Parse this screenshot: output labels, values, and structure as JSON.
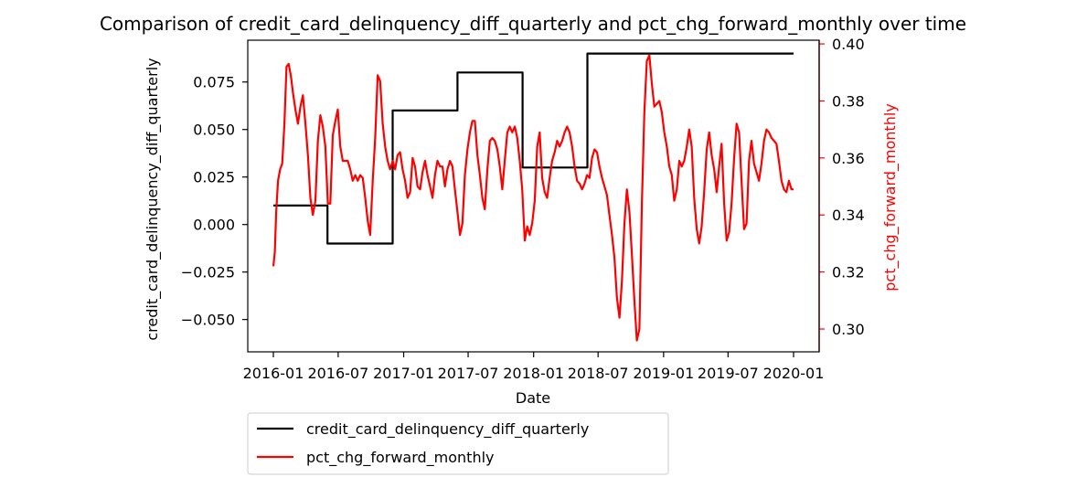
{
  "chart_data": {
    "type": "line",
    "title": "Comparison of credit_card_delinquency_diff_quarterly and pct_chg_forward_monthly over time",
    "xlabel": "Date",
    "ylabel_left": "credit_card_delinquency_diff_quarterly",
    "ylabel_right": "pct_chg_forward_monthly",
    "xlim": [
      "2016-01-01",
      "2020-01-01"
    ],
    "ylim_left": [
      -0.067,
      0.097
    ],
    "ylim_right": [
      0.292,
      0.4013
    ],
    "x_ticks": [
      "2016-01",
      "2016-07",
      "2017-01",
      "2017-07",
      "2018-01",
      "2018-07",
      "2019-01",
      "2019-07",
      "2020-01"
    ],
    "y_ticks_left": [
      "0.075",
      "0.050",
      "0.025",
      "0.000",
      "−0.025",
      "−0.050"
    ],
    "y_ticks_left_values": [
      0.075,
      0.05,
      0.025,
      0.0,
      -0.025,
      -0.05
    ],
    "y_ticks_right": [
      "0.40",
      "0.38",
      "0.36",
      "0.34",
      "0.32",
      "0.30"
    ],
    "y_ticks_right_values": [
      0.4,
      0.38,
      0.36,
      0.34,
      0.32,
      0.3
    ],
    "grid": false,
    "legend_placement": "below-left",
    "colors": {
      "left_series": "#000000",
      "right_series": "#ff0000"
    },
    "series": [
      {
        "name": "credit_card_delinquency_diff_quarterly",
        "axis": "left",
        "step": true,
        "points": [
          [
            "2016-01-01",
            0.01
          ],
          [
            "2016-06-01",
            -0.01
          ],
          [
            "2016-12-01",
            0.06
          ],
          [
            "2017-06-01",
            0.08
          ],
          [
            "2017-06-01",
            0.08
          ],
          [
            "2017-12-01",
            0.03
          ],
          [
            "2017-12-01",
            0.03
          ],
          [
            "2018-06-01",
            0.09
          ],
          [
            "2018-06-01",
            0.09
          ]
        ]
      },
      {
        "name": "pct_chg_forward_monthly",
        "axis": "right",
        "points": [
          [
            "2016-01-01",
            0.322
          ],
          [
            "2016-01-05",
            0.327
          ],
          [
            "2016-01-09",
            0.341
          ],
          [
            "2016-01-14",
            0.352
          ],
          [
            "2016-01-20",
            0.356
          ],
          [
            "2016-01-26",
            0.358
          ],
          [
            "2016-02-01",
            0.372
          ],
          [
            "2016-02-07",
            0.392
          ],
          [
            "2016-02-13",
            0.393
          ],
          [
            "2016-02-19",
            0.389
          ],
          [
            "2016-02-25",
            0.383
          ],
          [
            "2016-03-03",
            0.377
          ],
          [
            "2016-03-10",
            0.372
          ],
          [
            "2016-03-17",
            0.378
          ],
          [
            "2016-03-24",
            0.382
          ],
          [
            "2016-03-31",
            0.372
          ],
          [
            "2016-04-07",
            0.361
          ],
          [
            "2016-04-14",
            0.346
          ],
          [
            "2016-04-21",
            0.34
          ],
          [
            "2016-04-28",
            0.345
          ],
          [
            "2016-05-05",
            0.366
          ],
          [
            "2016-05-12",
            0.375
          ],
          [
            "2016-05-19",
            0.371
          ],
          [
            "2016-05-26",
            0.364
          ],
          [
            "2016-06-02",
            0.344
          ],
          [
            "2016-06-09",
            0.344
          ],
          [
            "2016-06-16",
            0.368
          ],
          [
            "2016-06-23",
            0.373
          ],
          [
            "2016-06-30",
            0.377
          ],
          [
            "2016-07-07",
            0.364
          ],
          [
            "2016-07-14",
            0.359
          ],
          [
            "2016-07-21",
            0.359
          ],
          [
            "2016-07-28",
            0.359
          ],
          [
            "2016-08-04",
            0.356
          ],
          [
            "2016-08-11",
            0.352
          ],
          [
            "2016-08-18",
            0.354
          ],
          [
            "2016-08-25",
            0.352
          ],
          [
            "2016-09-01",
            0.354
          ],
          [
            "2016-09-08",
            0.353
          ],
          [
            "2016-09-15",
            0.346
          ],
          [
            "2016-09-22",
            0.338
          ],
          [
            "2016-09-29",
            0.333
          ],
          [
            "2016-10-06",
            0.352
          ],
          [
            "2016-10-13",
            0.367
          ],
          [
            "2016-10-20",
            0.389
          ],
          [
            "2016-10-27",
            0.387
          ],
          [
            "2016-11-03",
            0.372
          ],
          [
            "2016-11-10",
            0.364
          ],
          [
            "2016-11-17",
            0.359
          ],
          [
            "2016-11-24",
            0.356
          ],
          [
            "2016-12-01",
            0.359
          ],
          [
            "2016-12-08",
            0.356
          ],
          [
            "2016-12-15",
            0.361
          ],
          [
            "2016-12-22",
            0.362
          ],
          [
            "2016-12-29",
            0.356
          ],
          [
            "2017-01-05",
            0.352
          ],
          [
            "2017-01-12",
            0.346
          ],
          [
            "2017-01-19",
            0.348
          ],
          [
            "2017-01-26",
            0.36
          ],
          [
            "2017-02-02",
            0.357
          ],
          [
            "2017-02-09",
            0.35
          ],
          [
            "2017-02-16",
            0.349
          ],
          [
            "2017-02-23",
            0.355
          ],
          [
            "2017-03-02",
            0.359
          ],
          [
            "2017-03-09",
            0.354
          ],
          [
            "2017-03-16",
            0.35
          ],
          [
            "2017-03-23",
            0.346
          ],
          [
            "2017-03-30",
            0.354
          ],
          [
            "2017-04-06",
            0.359
          ],
          [
            "2017-04-13",
            0.357
          ],
          [
            "2017-04-20",
            0.357
          ],
          [
            "2017-04-27",
            0.35
          ],
          [
            "2017-05-04",
            0.356
          ],
          [
            "2017-05-11",
            0.359
          ],
          [
            "2017-05-18",
            0.357
          ],
          [
            "2017-05-25",
            0.349
          ],
          [
            "2017-06-01",
            0.341
          ],
          [
            "2017-06-08",
            0.333
          ],
          [
            "2017-06-15",
            0.337
          ],
          [
            "2017-06-22",
            0.354
          ],
          [
            "2017-06-29",
            0.363
          ],
          [
            "2017-07-06",
            0.369
          ],
          [
            "2017-07-13",
            0.373
          ],
          [
            "2017-07-20",
            0.373
          ],
          [
            "2017-07-27",
            0.361
          ],
          [
            "2017-08-03",
            0.354
          ],
          [
            "2017-08-10",
            0.346
          ],
          [
            "2017-08-17",
            0.342
          ],
          [
            "2017-08-24",
            0.356
          ],
          [
            "2017-08-31",
            0.366
          ],
          [
            "2017-09-07",
            0.367
          ],
          [
            "2017-09-14",
            0.366
          ],
          [
            "2017-09-21",
            0.363
          ],
          [
            "2017-09-28",
            0.357
          ],
          [
            "2017-10-05",
            0.349
          ],
          [
            "2017-10-12",
            0.359
          ],
          [
            "2017-10-19",
            0.369
          ],
          [
            "2017-10-26",
            0.371
          ],
          [
            "2017-11-02",
            0.369
          ],
          [
            "2017-11-09",
            0.371
          ],
          [
            "2017-11-16",
            0.367
          ],
          [
            "2017-11-23",
            0.359
          ],
          [
            "2017-11-30",
            0.349
          ],
          [
            "2017-12-07",
            0.331
          ],
          [
            "2017-12-14",
            0.336
          ],
          [
            "2017-12-21",
            0.333
          ],
          [
            "2017-12-28",
            0.337
          ],
          [
            "2018-01-04",
            0.345
          ],
          [
            "2018-01-11",
            0.364
          ],
          [
            "2018-01-18",
            0.369
          ],
          [
            "2018-01-25",
            0.353
          ],
          [
            "2018-02-01",
            0.348
          ],
          [
            "2018-02-08",
            0.346
          ],
          [
            "2018-02-15",
            0.353
          ],
          [
            "2018-02-22",
            0.359
          ],
          [
            "2018-03-01",
            0.362
          ],
          [
            "2018-03-08",
            0.366
          ],
          [
            "2018-03-15",
            0.364
          ],
          [
            "2018-03-22",
            0.366
          ],
          [
            "2018-03-29",
            0.369
          ],
          [
            "2018-04-05",
            0.371
          ],
          [
            "2018-04-12",
            0.369
          ],
          [
            "2018-04-19",
            0.364
          ],
          [
            "2018-04-26",
            0.357
          ],
          [
            "2018-05-03",
            0.352
          ],
          [
            "2018-05-10",
            0.351
          ],
          [
            "2018-05-17",
            0.349
          ],
          [
            "2018-05-24",
            0.351
          ],
          [
            "2018-05-31",
            0.354
          ],
          [
            "2018-06-07",
            0.353
          ],
          [
            "2018-06-14",
            0.36
          ],
          [
            "2018-06-21",
            0.363
          ],
          [
            "2018-06-28",
            0.362
          ],
          [
            "2018-07-05",
            0.357
          ],
          [
            "2018-07-12",
            0.353
          ],
          [
            "2018-07-19",
            0.35
          ],
          [
            "2018-07-26",
            0.347
          ],
          [
            "2018-08-02",
            0.34
          ],
          [
            "2018-08-09",
            0.333
          ],
          [
            "2018-08-16",
            0.325
          ],
          [
            "2018-08-23",
            0.311
          ],
          [
            "2018-08-30",
            0.304
          ],
          [
            "2018-09-06",
            0.317
          ],
          [
            "2018-09-13",
            0.337
          ],
          [
            "2018-09-20",
            0.349
          ],
          [
            "2018-09-27",
            0.341
          ],
          [
            "2018-10-04",
            0.326
          ],
          [
            "2018-10-11",
            0.31
          ],
          [
            "2018-10-18",
            0.296
          ],
          [
            "2018-10-25",
            0.3
          ],
          [
            "2018-11-01",
            0.344
          ],
          [
            "2018-11-08",
            0.376
          ],
          [
            "2018-11-15",
            0.394
          ],
          [
            "2018-11-22",
            0.396
          ],
          [
            "2018-11-29",
            0.386
          ],
          [
            "2018-12-06",
            0.378
          ],
          [
            "2018-12-13",
            0.379
          ],
          [
            "2018-12-20",
            0.38
          ],
          [
            "2018-12-27",
            0.376
          ],
          [
            "2019-01-03",
            0.369
          ],
          [
            "2019-01-10",
            0.364
          ],
          [
            "2019-01-17",
            0.357
          ],
          [
            "2019-01-24",
            0.354
          ],
          [
            "2019-01-31",
            0.345
          ],
          [
            "2019-02-07",
            0.349
          ],
          [
            "2019-02-14",
            0.359
          ],
          [
            "2019-02-21",
            0.357
          ],
          [
            "2019-02-28",
            0.359
          ],
          [
            "2019-03-07",
            0.364
          ],
          [
            "2019-03-14",
            0.37
          ],
          [
            "2019-03-21",
            0.364
          ],
          [
            "2019-03-28",
            0.346
          ],
          [
            "2019-04-04",
            0.335
          ],
          [
            "2019-04-11",
            0.33
          ],
          [
            "2019-04-18",
            0.336
          ],
          [
            "2019-04-25",
            0.348
          ],
          [
            "2019-05-02",
            0.363
          ],
          [
            "2019-05-09",
            0.369
          ],
          [
            "2019-05-16",
            0.361
          ],
          [
            "2019-05-23",
            0.356
          ],
          [
            "2019-05-30",
            0.348
          ],
          [
            "2019-06-06",
            0.357
          ],
          [
            "2019-06-13",
            0.365
          ],
          [
            "2019-06-20",
            0.344
          ],
          [
            "2019-06-27",
            0.331
          ],
          [
            "2019-07-04",
            0.334
          ],
          [
            "2019-07-11",
            0.344
          ],
          [
            "2019-07-18",
            0.36
          ],
          [
            "2019-07-25",
            0.372
          ],
          [
            "2019-08-01",
            0.369
          ],
          [
            "2019-08-08",
            0.352
          ],
          [
            "2019-08-15",
            0.335
          ],
          [
            "2019-08-22",
            0.337
          ],
          [
            "2019-08-29",
            0.359
          ],
          [
            "2019-09-05",
            0.366
          ],
          [
            "2019-09-12",
            0.358
          ],
          [
            "2019-09-19",
            0.355
          ],
          [
            "2019-09-26",
            0.352
          ],
          [
            "2019-10-03",
            0.358
          ],
          [
            "2019-10-10",
            0.366
          ],
          [
            "2019-10-17",
            0.37
          ],
          [
            "2019-10-24",
            0.369
          ],
          [
            "2019-10-31",
            0.367
          ],
          [
            "2019-11-07",
            0.366
          ],
          [
            "2019-11-14",
            0.365
          ],
          [
            "2019-11-21",
            0.359
          ],
          [
            "2019-11-28",
            0.352
          ],
          [
            "2019-12-05",
            0.349
          ],
          [
            "2019-12-12",
            0.348
          ],
          [
            "2019-12-19",
            0.352
          ],
          [
            "2019-12-26",
            0.349
          ],
          [
            "2020-01-01",
            0.349
          ]
        ]
      }
    ]
  }
}
